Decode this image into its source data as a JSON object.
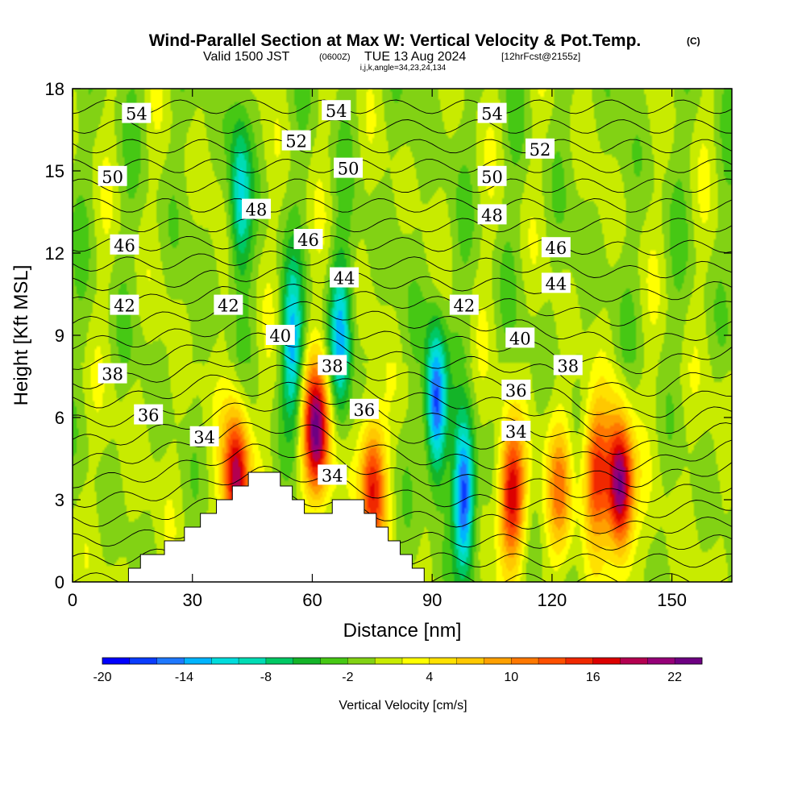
{
  "header": {
    "title": "Wind-Parallel Section at Max W: Vertical Velocity & Pot.Temp.",
    "title_mark": "(C)",
    "valid_prefix": "Valid 1500 JST",
    "valid_z": "(0600Z)",
    "valid_date": "TUE 13 Aug 2024",
    "valid_fcst": "[12hrFcst@2155z]",
    "ijk": "i,j,k,angle=34,23,24,134"
  },
  "chart_data": {
    "type": "heatmap",
    "xlabel": "Distance [nm]",
    "ylabel": "Height [Kft MSL]",
    "xlim": [
      0,
      165
    ],
    "ylim": [
      0,
      18
    ],
    "x_ticks": [
      0,
      30,
      60,
      90,
      120,
      150
    ],
    "y_ticks": [
      0,
      3,
      6,
      9,
      12,
      15,
      18
    ],
    "colorbar": {
      "label": "Vertical Velocity [cm/s]",
      "levels": [
        -20,
        -18,
        -16,
        -14,
        -12,
        -10,
        -8,
        -6,
        -4,
        -2,
        0,
        2,
        4,
        6,
        8,
        10,
        12,
        14,
        16,
        18,
        20,
        22,
        24
      ],
      "tick_labels": [
        "-20",
        "-14",
        "-8",
        "-2",
        "4",
        "10",
        "16",
        "22"
      ],
      "colors": [
        "#0000ff",
        "#0a3cff",
        "#1e78ff",
        "#00b4ff",
        "#00dcdc",
        "#00dcb4",
        "#00c864",
        "#14b428",
        "#46c814",
        "#82d214",
        "#c8eb00",
        "#ffff00",
        "#ffe100",
        "#ffc800",
        "#ffa000",
        "#ff7800",
        "#ff5000",
        "#f02800",
        "#dc0000",
        "#b40050",
        "#960078",
        "#6e0082"
      ]
    },
    "updrafts": [
      {
        "x": 41,
        "z": 3.8,
        "w": 20
      },
      {
        "x": 61,
        "z": 5.5,
        "w": 22
      },
      {
        "x": 75,
        "z": 3.5,
        "w": 16
      },
      {
        "x": 110,
        "z": 3.2,
        "w": 18
      },
      {
        "x": 122,
        "z": 3.5,
        "w": 10
      },
      {
        "x": 131,
        "z": 4.0,
        "w": 14
      },
      {
        "x": 137,
        "z": 3.5,
        "w": 24
      }
    ],
    "downdrafts": [
      {
        "x": 91,
        "z": 6.5,
        "w": -18
      },
      {
        "x": 98,
        "z": 3.0,
        "w": -18
      },
      {
        "x": 67,
        "z": 9.0,
        "w": -12
      },
      {
        "x": 55,
        "z": 8.5,
        "w": -12
      },
      {
        "x": 42,
        "z": 14.0,
        "w": -10
      }
    ],
    "terrain": [
      [
        12,
        0
      ],
      [
        14,
        0.5
      ],
      [
        17,
        1
      ],
      [
        23,
        1.5
      ],
      [
        28,
        2
      ],
      [
        32,
        2.5
      ],
      [
        36,
        3
      ],
      [
        40,
        3.5
      ],
      [
        44,
        4
      ],
      [
        49,
        4
      ],
      [
        52,
        3.5
      ],
      [
        55,
        3
      ],
      [
        58,
        2.5
      ],
      [
        60,
        2.5
      ],
      [
        62,
        2.5
      ],
      [
        65,
        3
      ],
      [
        70,
        3
      ],
      [
        73,
        2.5
      ],
      [
        76,
        2
      ],
      [
        79,
        1.5
      ],
      [
        82,
        1
      ],
      [
        85,
        0.5
      ],
      [
        88,
        0
      ]
    ],
    "isentropes": {
      "levels": [
        30,
        31,
        32,
        33,
        34,
        35,
        36,
        37,
        38,
        39,
        40,
        41,
        42,
        43,
        44,
        45,
        46,
        47,
        48,
        49,
        50,
        51,
        52,
        53,
        54,
        55
      ],
      "labels": [
        {
          "text": "54",
          "x": 16,
          "z": 17.1
        },
        {
          "text": "54",
          "x": 66,
          "z": 17.2
        },
        {
          "text": "54",
          "x": 105,
          "z": 17.1
        },
        {
          "text": "52",
          "x": 56,
          "z": 16.1
        },
        {
          "text": "52",
          "x": 117,
          "z": 15.8
        },
        {
          "text": "50",
          "x": 10,
          "z": 14.8
        },
        {
          "text": "50",
          "x": 69,
          "z": 15.1
        },
        {
          "text": "50",
          "x": 105,
          "z": 14.8
        },
        {
          "text": "48",
          "x": 46,
          "z": 13.6
        },
        {
          "text": "48",
          "x": 105,
          "z": 13.4
        },
        {
          "text": "46",
          "x": 13,
          "z": 12.3
        },
        {
          "text": "46",
          "x": 59,
          "z": 12.5
        },
        {
          "text": "46",
          "x": 121,
          "z": 12.2
        },
        {
          "text": "44",
          "x": 68,
          "z": 11.1
        },
        {
          "text": "44",
          "x": 121,
          "z": 10.9
        },
        {
          "text": "42",
          "x": 13,
          "z": 10.1
        },
        {
          "text": "42",
          "x": 39,
          "z": 10.1
        },
        {
          "text": "42",
          "x": 98,
          "z": 10.1
        },
        {
          "text": "40",
          "x": 52,
          "z": 9.0
        },
        {
          "text": "40",
          "x": 112,
          "z": 8.9
        },
        {
          "text": "38",
          "x": 10,
          "z": 7.6
        },
        {
          "text": "38",
          "x": 65,
          "z": 7.9
        },
        {
          "text": "38",
          "x": 124,
          "z": 7.9
        },
        {
          "text": "36",
          "x": 19,
          "z": 6.1
        },
        {
          "text": "36",
          "x": 73,
          "z": 6.3
        },
        {
          "text": "36",
          "x": 111,
          "z": 7.0
        },
        {
          "text": "34",
          "x": 33,
          "z": 5.3
        },
        {
          "text": "34",
          "x": 65,
          "z": 3.9
        },
        {
          "text": "34",
          "x": 111,
          "z": 5.5
        }
      ]
    }
  }
}
